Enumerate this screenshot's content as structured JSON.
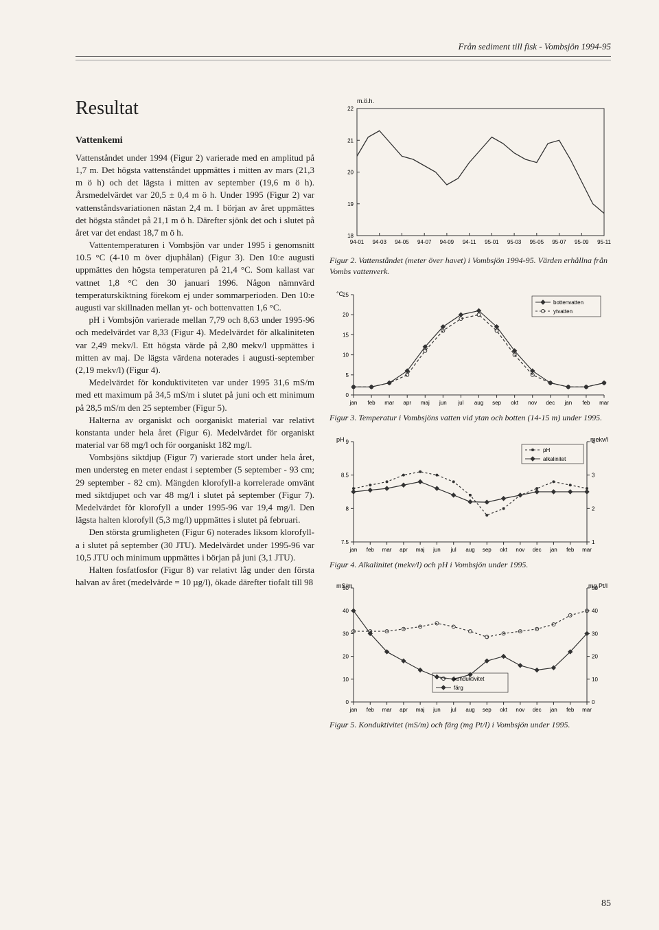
{
  "running_head": "Från sediment till fisk - Vombsjön 1994-95",
  "section_title": "Resultat",
  "subhead": "Vattenkemi",
  "paragraphs": [
    "Vattenståndet under 1994 (Figur 2) varierade med en amplitud på 1,7 m. Det högsta vattenståndet uppmättes i mitten av mars (21,3 m ö h) och det lägsta i mitten av september (19,6 m ö h). Årsmedelvärdet var 20,5 ± 0,4 m ö h. Under 1995 (Figur 2) var vattenståndsvariationen nästan 2,4 m. I början av året uppmättes det högsta ståndet på 21,1 m ö h. Därefter sjönk det och i slutet på året var det endast 18,7 m ö h.",
    "Vattentemperaturen i Vombsjön var under 1995 i genomsnitt 10.5 °C (4-10 m över djuphålan) (Figur 3). Den 10:e augusti uppmättes den högsta temperaturen på 21,4 °C. Som kallast var vattnet 1,8 °C den 30 januari 1996. Någon nämnvärd temperaturskiktning förekom ej under sommarperioden. Den 10:e augusti var skillnaden mellan yt- och bottenvatten 1,6 °C.",
    "pH i Vombsjön varierade mellan 7,79 och 8,63 under 1995-96 och medelvärdet var 8,33 (Figur 4). Medelvärdet för alkaliniteten var 2,49 mekv/l. Ett högsta värde på 2,80 mekv/l uppmättes i mitten av maj. De lägsta värdena noterades i augusti-september (2,19 mekv/l) (Figur 4).",
    "Medelvärdet för konduktiviteten var under 1995 31,6 mS/m med ett maximum på 34,5 mS/m i slutet på juni och ett minimum på 28,5 mS/m den 25 september (Figur 5).",
    "Halterna av organiskt och oorganiskt material var relativt konstanta under hela året (Figur 6). Medelvärdet för organiskt material var 68 mg/l och för oorganiskt 182 mg/l.",
    "Vombsjöns siktdjup (Figur 7) varierade stort under hela året, men understeg en meter endast i september (5 september - 93 cm; 29 september - 82 cm). Mängden klorofyll-a korrelerade omvänt med siktdjupet och var 48 mg/l i slutet på september (Figur 7). Medelvärdet för klorofyll a under 1995-96 var 19,4 mg/l. Den lägsta halten klorofyll (5,3 mg/l) uppmättes i slutet på februari.",
    "Den största grumligheten (Figur 6) noterades liksom klorofyll-a i slutet på september (30 JTU). Medelvärdet under 1995-96 var 10,5 JTU och minimum uppmättes i början på juni (3,1 JTU).",
    "Halten fosfatfosfor (Figur 8) var relativt låg under den första halvan av året (medelvärde = 10 µg/l), ökade därefter tiofalt till 98"
  ],
  "fig2": {
    "ylabel": "m.ö.h.",
    "ylim": [
      18,
      22
    ],
    "ytick_step": 1,
    "xticks": [
      "94-01",
      "94-03",
      "94-05",
      "94-07",
      "94-09",
      "94-11",
      "95-01",
      "95-03",
      "95-05",
      "95-07",
      "95-09",
      "95-11"
    ],
    "series": {
      "vals": [
        20.5,
        21.1,
        21.3,
        20.9,
        20.5,
        20.4,
        20.2,
        20.0,
        19.6,
        19.8,
        20.3,
        20.7,
        21.1,
        20.9,
        20.6,
        20.4,
        20.3,
        20.9,
        21.0,
        20.4,
        19.7,
        19.0,
        18.7
      ],
      "color": "#333"
    },
    "caption": "Figur 2. Vattenståndet (meter över havet) i Vombsjön 1994-95. Värden erhållna från Vombs vattenverk.",
    "label_fontsize": 9,
    "tick_fontsize": 8
  },
  "fig3": {
    "ylabel": "°C",
    "ylim": [
      0,
      25
    ],
    "ytick_step": 5,
    "xticks": [
      "jan",
      "feb",
      "mar",
      "apr",
      "maj",
      "jun",
      "jul",
      "aug",
      "sep",
      "okt",
      "nov",
      "dec",
      "jan",
      "feb",
      "mar"
    ],
    "legend": [
      {
        "label": "bottenvatten",
        "style": "solid",
        "marker": "diamond",
        "color": "#333"
      },
      {
        "label": "ytvatten",
        "style": "dashed",
        "marker": "open-circle",
        "color": "#333"
      }
    ],
    "series": [
      {
        "vals": [
          2,
          2,
          3,
          6,
          12,
          17,
          20,
          21,
          17,
          11,
          6,
          3,
          2,
          2,
          3
        ],
        "color": "#333",
        "dash": "none",
        "marker": "diamond"
      },
      {
        "vals": [
          2,
          2,
          3,
          5,
          11,
          16,
          19,
          20,
          16,
          10,
          5,
          3,
          2,
          2,
          3
        ],
        "color": "#333",
        "dash": "4,3",
        "marker": "circle"
      }
    ],
    "caption": "Figur 3. Temperatur i Vombsjöns vatten vid ytan och botten (14-15 m) under 1995.",
    "label_fontsize": 9,
    "tick_fontsize": 8
  },
  "fig4": {
    "ylabel_left": "pH",
    "ylabel_right": "mekv/l",
    "ylim_left": [
      7.5,
      9
    ],
    "ytick_left": [
      7.5,
      8,
      8.5,
      9
    ],
    "ylim_right": [
      1,
      4
    ],
    "ytick_right": [
      1,
      2,
      3,
      4
    ],
    "xticks": [
      "jan",
      "feb",
      "mar",
      "apr",
      "maj",
      "jun",
      "jul",
      "aug",
      "sep",
      "okt",
      "nov",
      "dec",
      "jan",
      "feb",
      "mar"
    ],
    "legend": [
      {
        "label": "pH",
        "style": "dashed",
        "marker": "dot",
        "color": "#333"
      },
      {
        "label": "alkalinitet",
        "style": "solid",
        "marker": "diamond",
        "color": "#333"
      }
    ],
    "series": [
      {
        "key": "pH",
        "vals": [
          8.3,
          8.35,
          8.4,
          8.5,
          8.55,
          8.5,
          8.4,
          8.2,
          7.9,
          8.0,
          8.2,
          8.3,
          8.4,
          8.35,
          8.3
        ],
        "color": "#333",
        "dash": "3,3",
        "marker": "dot",
        "axis": "left"
      },
      {
        "key": "alk",
        "vals": [
          2.5,
          2.55,
          2.6,
          2.7,
          2.8,
          2.6,
          2.4,
          2.2,
          2.19,
          2.3,
          2.4,
          2.5,
          2.5,
          2.5,
          2.5
        ],
        "color": "#333",
        "dash": "none",
        "marker": "diamond",
        "axis": "right"
      }
    ],
    "caption": "Figur 4. Alkalinitet (mekv/l) och pH i Vombsjön under 1995.",
    "label_fontsize": 9,
    "tick_fontsize": 8
  },
  "fig5": {
    "ylabel_left": "mS/m",
    "ylabel_right": "mg Pt/l",
    "ylim_left": [
      0,
      50
    ],
    "ytick_left": [
      0,
      10,
      20,
      30,
      40,
      50
    ],
    "ylim_right": [
      0,
      50
    ],
    "ytick_right": [
      0,
      10,
      20,
      30,
      40,
      50
    ],
    "xticks": [
      "jan",
      "feb",
      "mar",
      "apr",
      "maj",
      "jun",
      "jul",
      "aug",
      "sep",
      "okt",
      "nov",
      "dec",
      "jan",
      "feb",
      "mar"
    ],
    "legend": [
      {
        "label": "konduktivitet",
        "style": "dashed",
        "marker": "open-circle",
        "color": "#333"
      },
      {
        "label": "färg",
        "style": "solid",
        "marker": "diamond",
        "color": "#333"
      }
    ],
    "series": [
      {
        "key": "kond",
        "vals": [
          31,
          31,
          31,
          32,
          33,
          34.5,
          33,
          31,
          28.5,
          30,
          31,
          32,
          34,
          38,
          40
        ],
        "color": "#333",
        "dash": "3,3",
        "marker": "circle",
        "axis": "left"
      },
      {
        "key": "farg",
        "vals": [
          40,
          30,
          22,
          18,
          14,
          11,
          10,
          12,
          18,
          20,
          16,
          14,
          15,
          22,
          30
        ],
        "color": "#333",
        "dash": "none",
        "marker": "diamond",
        "axis": "right"
      }
    ],
    "caption": "Figur 5. Konduktivitet (mS/m) och färg (mg Pt/l) i Vombsjön under 1995.",
    "label_fontsize": 9,
    "tick_fontsize": 8
  },
  "page_number": "85"
}
